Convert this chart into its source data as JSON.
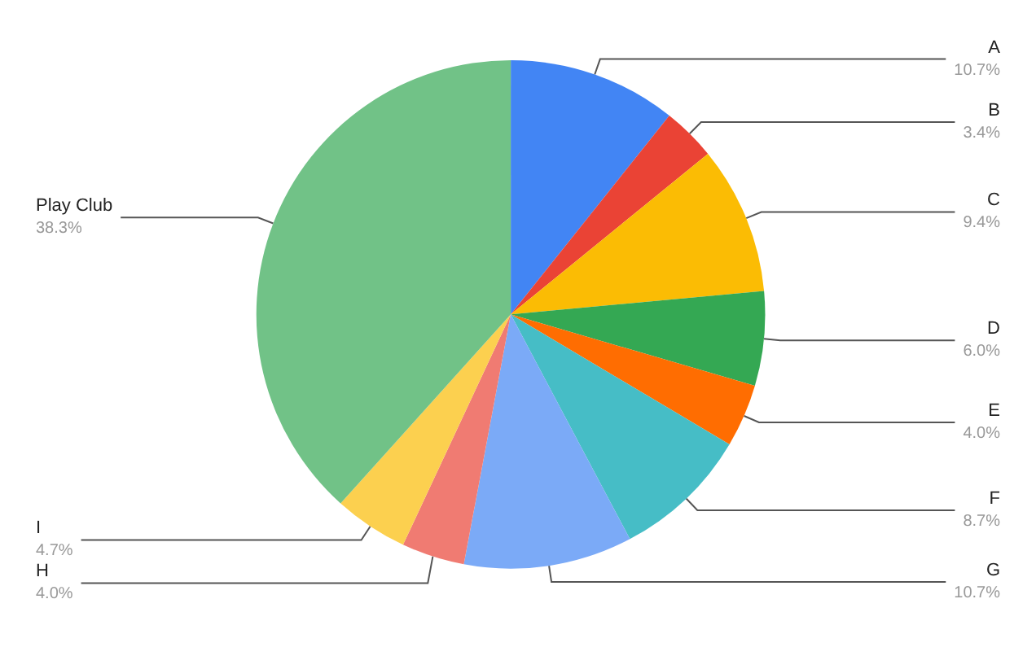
{
  "chart_data": {
    "type": "pie",
    "categories": [
      "A",
      "B",
      "C",
      "D",
      "E",
      "F",
      "G",
      "H",
      "I",
      "Play Club"
    ],
    "values": [
      10.7,
      3.4,
      9.4,
      6.0,
      4.0,
      8.7,
      10.7,
      4.0,
      4.7,
      38.3
    ],
    "value_labels": [
      "10.7%",
      "3.4%",
      "9.4%",
      "6.0%",
      "4.0%",
      "8.7%",
      "10.7%",
      "4.0%",
      "4.7%",
      "38.3%"
    ],
    "colors": [
      "#4285f4",
      "#ea4335",
      "#fbbc04",
      "#34a853",
      "#ff6d01",
      "#46bdc6",
      "#7baaf7",
      "#f07b72",
      "#fcd04f",
      "#71c287"
    ],
    "legend": false
  }
}
